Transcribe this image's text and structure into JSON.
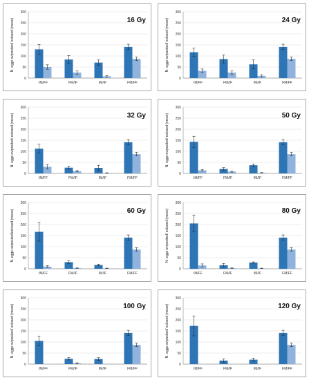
{
  "colors": {
    "eggs": "#2e75b6",
    "eclosed": "#8fb3dc",
    "grid": "#d9d9d9",
    "axis": "#8c8c8c",
    "error": "#2a2a2a"
  },
  "chart_data": [
    {
      "type": "bar",
      "title": "16 Gy",
      "ylabel": "N. eggs oviposited/ eclosed (mean)",
      "ylim": [
        0,
        300
      ],
      "yticks": [
        0,
        50,
        100,
        150,
        200,
        250,
        300
      ],
      "categories": [
        "IM/FF",
        "FM/IF",
        "IM/IF",
        "FM/FF"
      ],
      "series": [
        {
          "values": [
            130,
            84,
            70,
            141
          ],
          "errors": [
            22,
            18,
            12,
            12
          ]
        },
        {
          "values": [
            50,
            25,
            8,
            87
          ],
          "errors": [
            10,
            7,
            3,
            8
          ]
        }
      ]
    },
    {
      "type": "bar",
      "title": "24 Gy",
      "ylabel": "N. eggs oviposited/ eclosed (mean)",
      "ylim": [
        0,
        300
      ],
      "yticks": [
        0,
        50,
        100,
        150,
        200,
        250,
        300
      ],
      "categories": [
        "IM/FF",
        "FM/IF",
        "IM/IF",
        "FM/FF"
      ],
      "series": [
        {
          "values": [
            117,
            86,
            62,
            141
          ],
          "errors": [
            18,
            18,
            20,
            12
          ]
        },
        {
          "values": [
            33,
            25,
            10,
            87
          ],
          "errors": [
            8,
            7,
            5,
            8
          ]
        }
      ]
    },
    {
      "type": "bar",
      "title": "32 Gy",
      "ylabel": "N. eggs oviposited/ eclosed (mean)",
      "ylim": [
        0,
        300
      ],
      "yticks": [
        0,
        50,
        100,
        150,
        200,
        250,
        300
      ],
      "categories": [
        "IM/FF",
        "FM/IF",
        "IM/IF",
        "FM/FF"
      ],
      "series": [
        {
          "values": [
            112,
            26,
            25,
            141
          ],
          "errors": [
            20,
            7,
            12,
            12
          ]
        },
        {
          "values": [
            30,
            10,
            2,
            87
          ],
          "errors": [
            10,
            3,
            1,
            8
          ]
        }
      ]
    },
    {
      "type": "bar",
      "title": "50 Gy",
      "ylabel": "N. eggs oviposited/ eclosed (mean)",
      "ylim": [
        0,
        300
      ],
      "yticks": [
        0,
        50,
        100,
        150,
        200,
        250,
        300
      ],
      "categories": [
        "IM/FF",
        "FM/IF",
        "IM/IF",
        "FM/FF"
      ],
      "series": [
        {
          "values": [
            143,
            20,
            37,
            141
          ],
          "errors": [
            25,
            6,
            6,
            12
          ]
        },
        {
          "values": [
            14,
            8,
            3,
            87
          ],
          "errors": [
            4,
            2,
            1,
            8
          ]
        }
      ]
    },
    {
      "type": "bar",
      "title": "60 Gy",
      "ylabel": "N. eggs oviposited/eclosed (mean)",
      "ylim": [
        0,
        300
      ],
      "yticks": [
        0,
        50,
        100,
        150,
        200,
        250,
        300
      ],
      "categories": [
        "IM/FF",
        "FM/IF",
        "IM/IF",
        "FM/FF"
      ],
      "series": [
        {
          "values": [
            167,
            30,
            17,
            141
          ],
          "errors": [
            42,
            6,
            4,
            12
          ]
        },
        {
          "values": [
            10,
            3,
            2,
            87
          ],
          "errors": [
            4,
            1,
            1,
            8
          ]
        }
      ]
    },
    {
      "type": "bar",
      "title": "80 Gy",
      "ylabel": "N. eggs oviposited/ eclosed (mean)",
      "ylim": [
        0,
        300
      ],
      "yticks": [
        0,
        50,
        100,
        150,
        200,
        250,
        300
      ],
      "categories": [
        "IM/FF",
        "FM/IF",
        "IM/IF",
        "FM/FF"
      ],
      "series": [
        {
          "values": [
            205,
            16,
            28,
            141
          ],
          "errors": [
            38,
            8,
            3,
            12
          ]
        },
        {
          "values": [
            15,
            3,
            2,
            87
          ],
          "errors": [
            7,
            1,
            1,
            8
          ]
        }
      ]
    },
    {
      "type": "bar",
      "title": "100 Gy",
      "ylabel": "N. eggs oviposited/ eclosed (mean)",
      "ylim": [
        0,
        300
      ],
      "yticks": [
        0,
        50,
        100,
        150,
        200,
        250,
        300
      ],
      "categories": [
        "IM/FF",
        "FM/IF",
        "IM/IF",
        "FM/FF"
      ],
      "series": [
        {
          "values": [
            105,
            24,
            23,
            141
          ],
          "errors": [
            22,
            5,
            6,
            12
          ]
        },
        {
          "values": [
            1,
            4,
            1,
            87
          ],
          "errors": [
            0,
            2,
            0,
            8
          ]
        }
      ]
    },
    {
      "type": "bar",
      "title": "120 Gy",
      "ylabel": "N. eggs oviposited/ eclosed (mean)",
      "ylim": [
        0,
        300
      ],
      "yticks": [
        0,
        50,
        100,
        150,
        200,
        250,
        300
      ],
      "categories": [
        "IM/FF",
        "FM/IF",
        "IM/IF",
        "FM/FF"
      ],
      "series": [
        {
          "values": [
            173,
            16,
            20,
            141
          ],
          "errors": [
            45,
            7,
            7,
            12
          ]
        },
        {
          "values": [
            1,
            1,
            1,
            87
          ],
          "errors": [
            0,
            0,
            0,
            8
          ]
        }
      ]
    }
  ]
}
